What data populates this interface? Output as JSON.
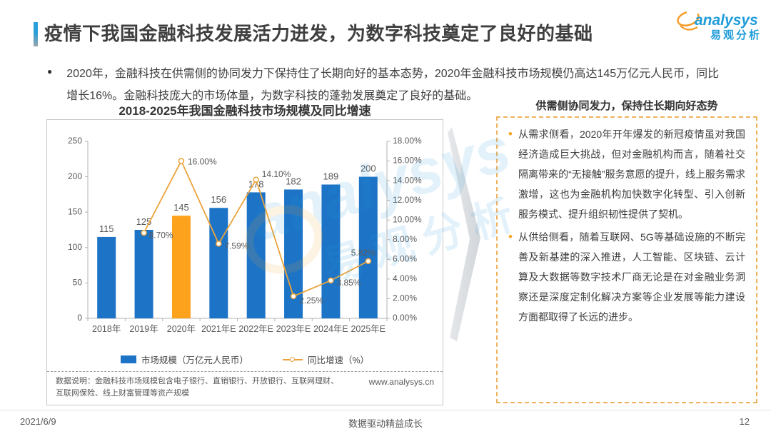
{
  "header": {
    "title": "疫情下我国金融科技发展活力迸发，为数字科技奠定了良好的基础",
    "logo": {
      "brand": "analysys",
      "brand_cn": "易观分析"
    }
  },
  "intro": {
    "text": "2020年，金融科技在供需侧的协同发力下保持住了长期向好的基本态势，2020年金融科技市场规模仍高达145万亿元人民币，同比增长16%。金融科技庞大的市场体量，为数字科技的蓬勃发展奠定了良好的基础。"
  },
  "chart": {
    "title": "2018-2025年我国金融科技市场规模及同比增速",
    "footnote": "数据说明：金融科技市场规模包含电子银行、直销银行、开放银行、互联网理财、互联网保险、线上财富管理等资产规模",
    "source_url": "www.analysys.cn"
  },
  "chart_data": {
    "type": "bar-line-combo",
    "title": "2018-2025年我国金融科技市场规模及同比增速",
    "categories": [
      "2018年",
      "2019年",
      "2020年",
      "2021年E",
      "2022年E",
      "2023年E",
      "2024年E",
      "2025年E"
    ],
    "series": [
      {
        "name": "市场规模（万亿元人民币）",
        "type": "bar",
        "axis": "left",
        "values": [
          115,
          125,
          145,
          156,
          178,
          182,
          189,
          200
        ],
        "color": "#1d74c6",
        "highlight_index": 2,
        "highlight_color": "#fda21d"
      },
      {
        "name": "同比增速（%）",
        "type": "line",
        "axis": "right",
        "values": [
          null,
          8.7,
          16.0,
          7.59,
          14.1,
          2.25,
          3.85,
          5.82
        ],
        "labels": [
          "",
          "8.70%",
          "16.00%",
          "7.59%",
          "14.10%",
          "2.25%",
          "3.85%",
          "5.82%"
        ],
        "color": "#eca33c"
      }
    ],
    "left_axis": {
      "min": 0,
      "max": 250,
      "ticks": [
        "250",
        "200",
        "150",
        "100",
        "50",
        "0"
      ]
    },
    "right_axis": {
      "min": 0,
      "max": 18,
      "ticks": [
        "18.00%",
        "16.00%",
        "14.00%",
        "12.00%",
        "10.00%",
        "8.00%",
        "6.00%",
        "4.00%",
        "2.00%",
        "0.00%"
      ]
    },
    "legend_position": "bottom",
    "grid": false
  },
  "side_panel": {
    "title": "供需侧协同发力，保持住长期向好态势",
    "bullets": [
      "从需求侧看，2020年开年爆发的新冠疫情虽对我国经济造成巨大挑战，但对金融机构而言，随着社交隔离带来的“无接触”服务意愿的提升，线上服务需求激增，这也为金融机构加快数字化转型、引入创新服务模式、提升组织韧性提供了契机。",
      "从供给侧看，随着互联网、5G等基础设施的不断完善及新基建的深入推进，人工智能、区块链、云计算及大数据等数字技术厂商无论是在对金融业务洞察还是深度定制化解决方案等企业发展等能力建设方面都取得了长远的进步。"
    ]
  },
  "footer": {
    "date": "2021/6/9",
    "center": "数据驱动精益成长",
    "page": "12"
  }
}
